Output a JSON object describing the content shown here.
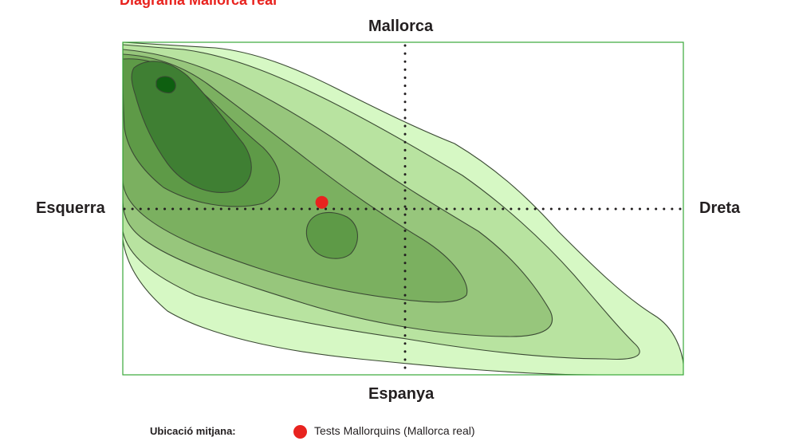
{
  "chart_data": {
    "type": "contour-density",
    "title": "Diagrama Mallorca real",
    "axes": {
      "top": "Mallorca",
      "bottom": "Espanya",
      "left": "Esquerra",
      "right": "Dreta"
    },
    "xlim": [
      -1,
      1
    ],
    "ylim": [
      -1,
      1
    ],
    "density_levels": 7,
    "level_colors": [
      "#d6f8c4",
      "#b8e3a0",
      "#97c67c",
      "#7bb060",
      "#5e9a47",
      "#3f7f33",
      "#0e5f10"
    ],
    "points": [
      {
        "series": "Tests Mallorquins (Mallorca real)",
        "x": -0.29,
        "y": 0.04,
        "color": "#e8231f"
      }
    ],
    "legend": {
      "title": "Ubicació mitjana:",
      "entries": [
        {
          "label": "Tests Mallorquins (Mallorca real)",
          "color": "#e8231f"
        }
      ],
      "position": "bottom"
    }
  }
}
